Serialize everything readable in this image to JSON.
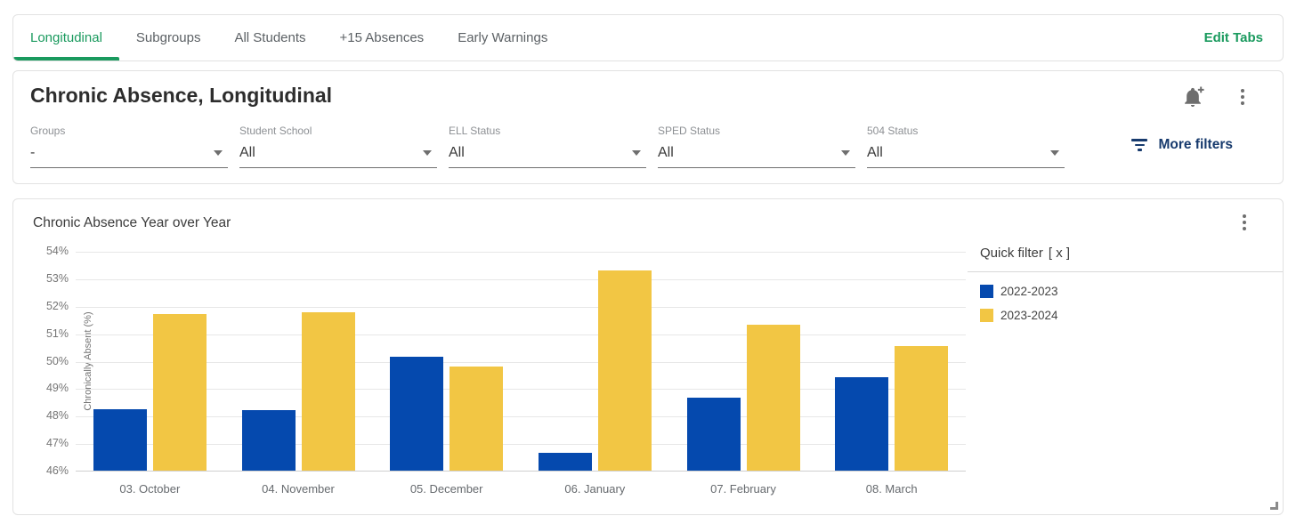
{
  "tabs": {
    "items": [
      {
        "label": "Longitudinal",
        "active": true
      },
      {
        "label": "Subgroups",
        "active": false
      },
      {
        "label": "All Students",
        "active": false
      },
      {
        "label": "+15 Absences",
        "active": false
      },
      {
        "label": "Early Warnings",
        "active": false
      }
    ],
    "edit_tabs_label": "Edit Tabs"
  },
  "header": {
    "title": "Chronic Absence, Longitudinal"
  },
  "filters": {
    "items": [
      {
        "label": "Groups",
        "value": "-"
      },
      {
        "label": "Student School",
        "value": "All"
      },
      {
        "label": "ELL Status",
        "value": "All"
      },
      {
        "label": "SPED Status",
        "value": "All"
      },
      {
        "label": "504 Status",
        "value": "All"
      }
    ],
    "more_filters_label": "More filters"
  },
  "chart_card": {
    "title": "Chronic Absence Year over Year",
    "quick_filter": {
      "title": "Quick filter",
      "close_label": "[ x ]"
    }
  },
  "chart_data": {
    "type": "bar",
    "title": "Chronic Absence Year over Year",
    "categories": [
      "03. October",
      "04. November",
      "05. December",
      "06. January",
      "07. February",
      "08. March"
    ],
    "series": [
      {
        "name": "2022-2023",
        "color": "#0549ae",
        "values": [
          48.25,
          48.2,
          50.15,
          46.65,
          48.65,
          49.4
        ]
      },
      {
        "name": "2023-2024",
        "color": "#f2c644",
        "values": [
          51.7,
          51.75,
          49.8,
          53.3,
          51.3,
          50.55
        ]
      }
    ],
    "xlabel": "",
    "ylabel": "Chronically Absent (%)",
    "ylim": [
      46,
      54
    ],
    "ytick_step": 1,
    "ytick_suffix": "%",
    "grid": true,
    "legend_position": "right-panel"
  },
  "colors": {
    "accent_green": "#1a9a5e",
    "navy": "#173a6d",
    "bar_blue": "#0549ae",
    "bar_yellow": "#f2c644"
  }
}
